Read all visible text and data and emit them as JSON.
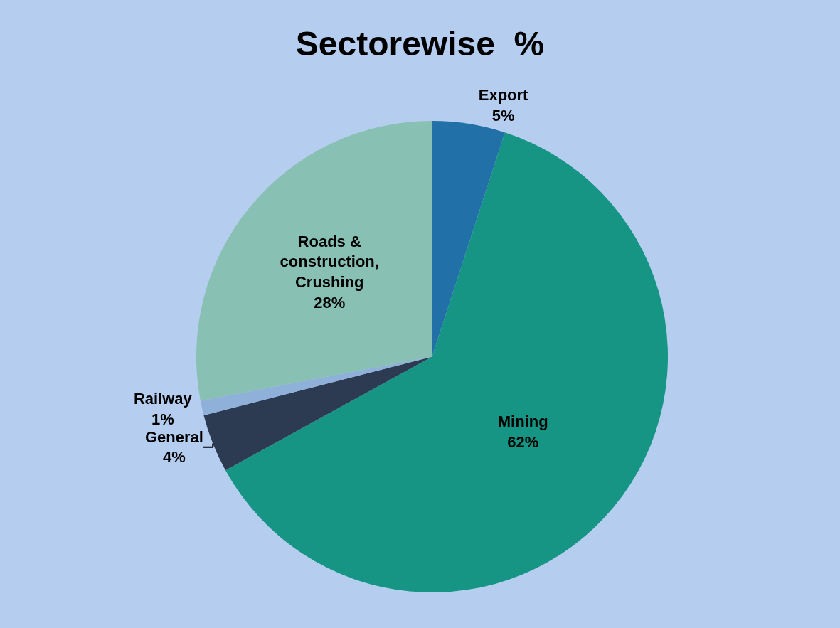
{
  "chart_data": {
    "type": "pie",
    "title": "Sectorewise  %",
    "categories": [
      "Export",
      "Mining",
      "General",
      "Railway",
      "Roads & construction, Crushing"
    ],
    "values": [
      5,
      62,
      4,
      1,
      28
    ],
    "value_labels": [
      "5%",
      "62%",
      "4%",
      "1%",
      "28%"
    ],
    "colors": [
      "#2270a8",
      "#169584",
      "#2d3b52",
      "#8fb0d8",
      "#88c0b4"
    ],
    "legend": false
  }
}
